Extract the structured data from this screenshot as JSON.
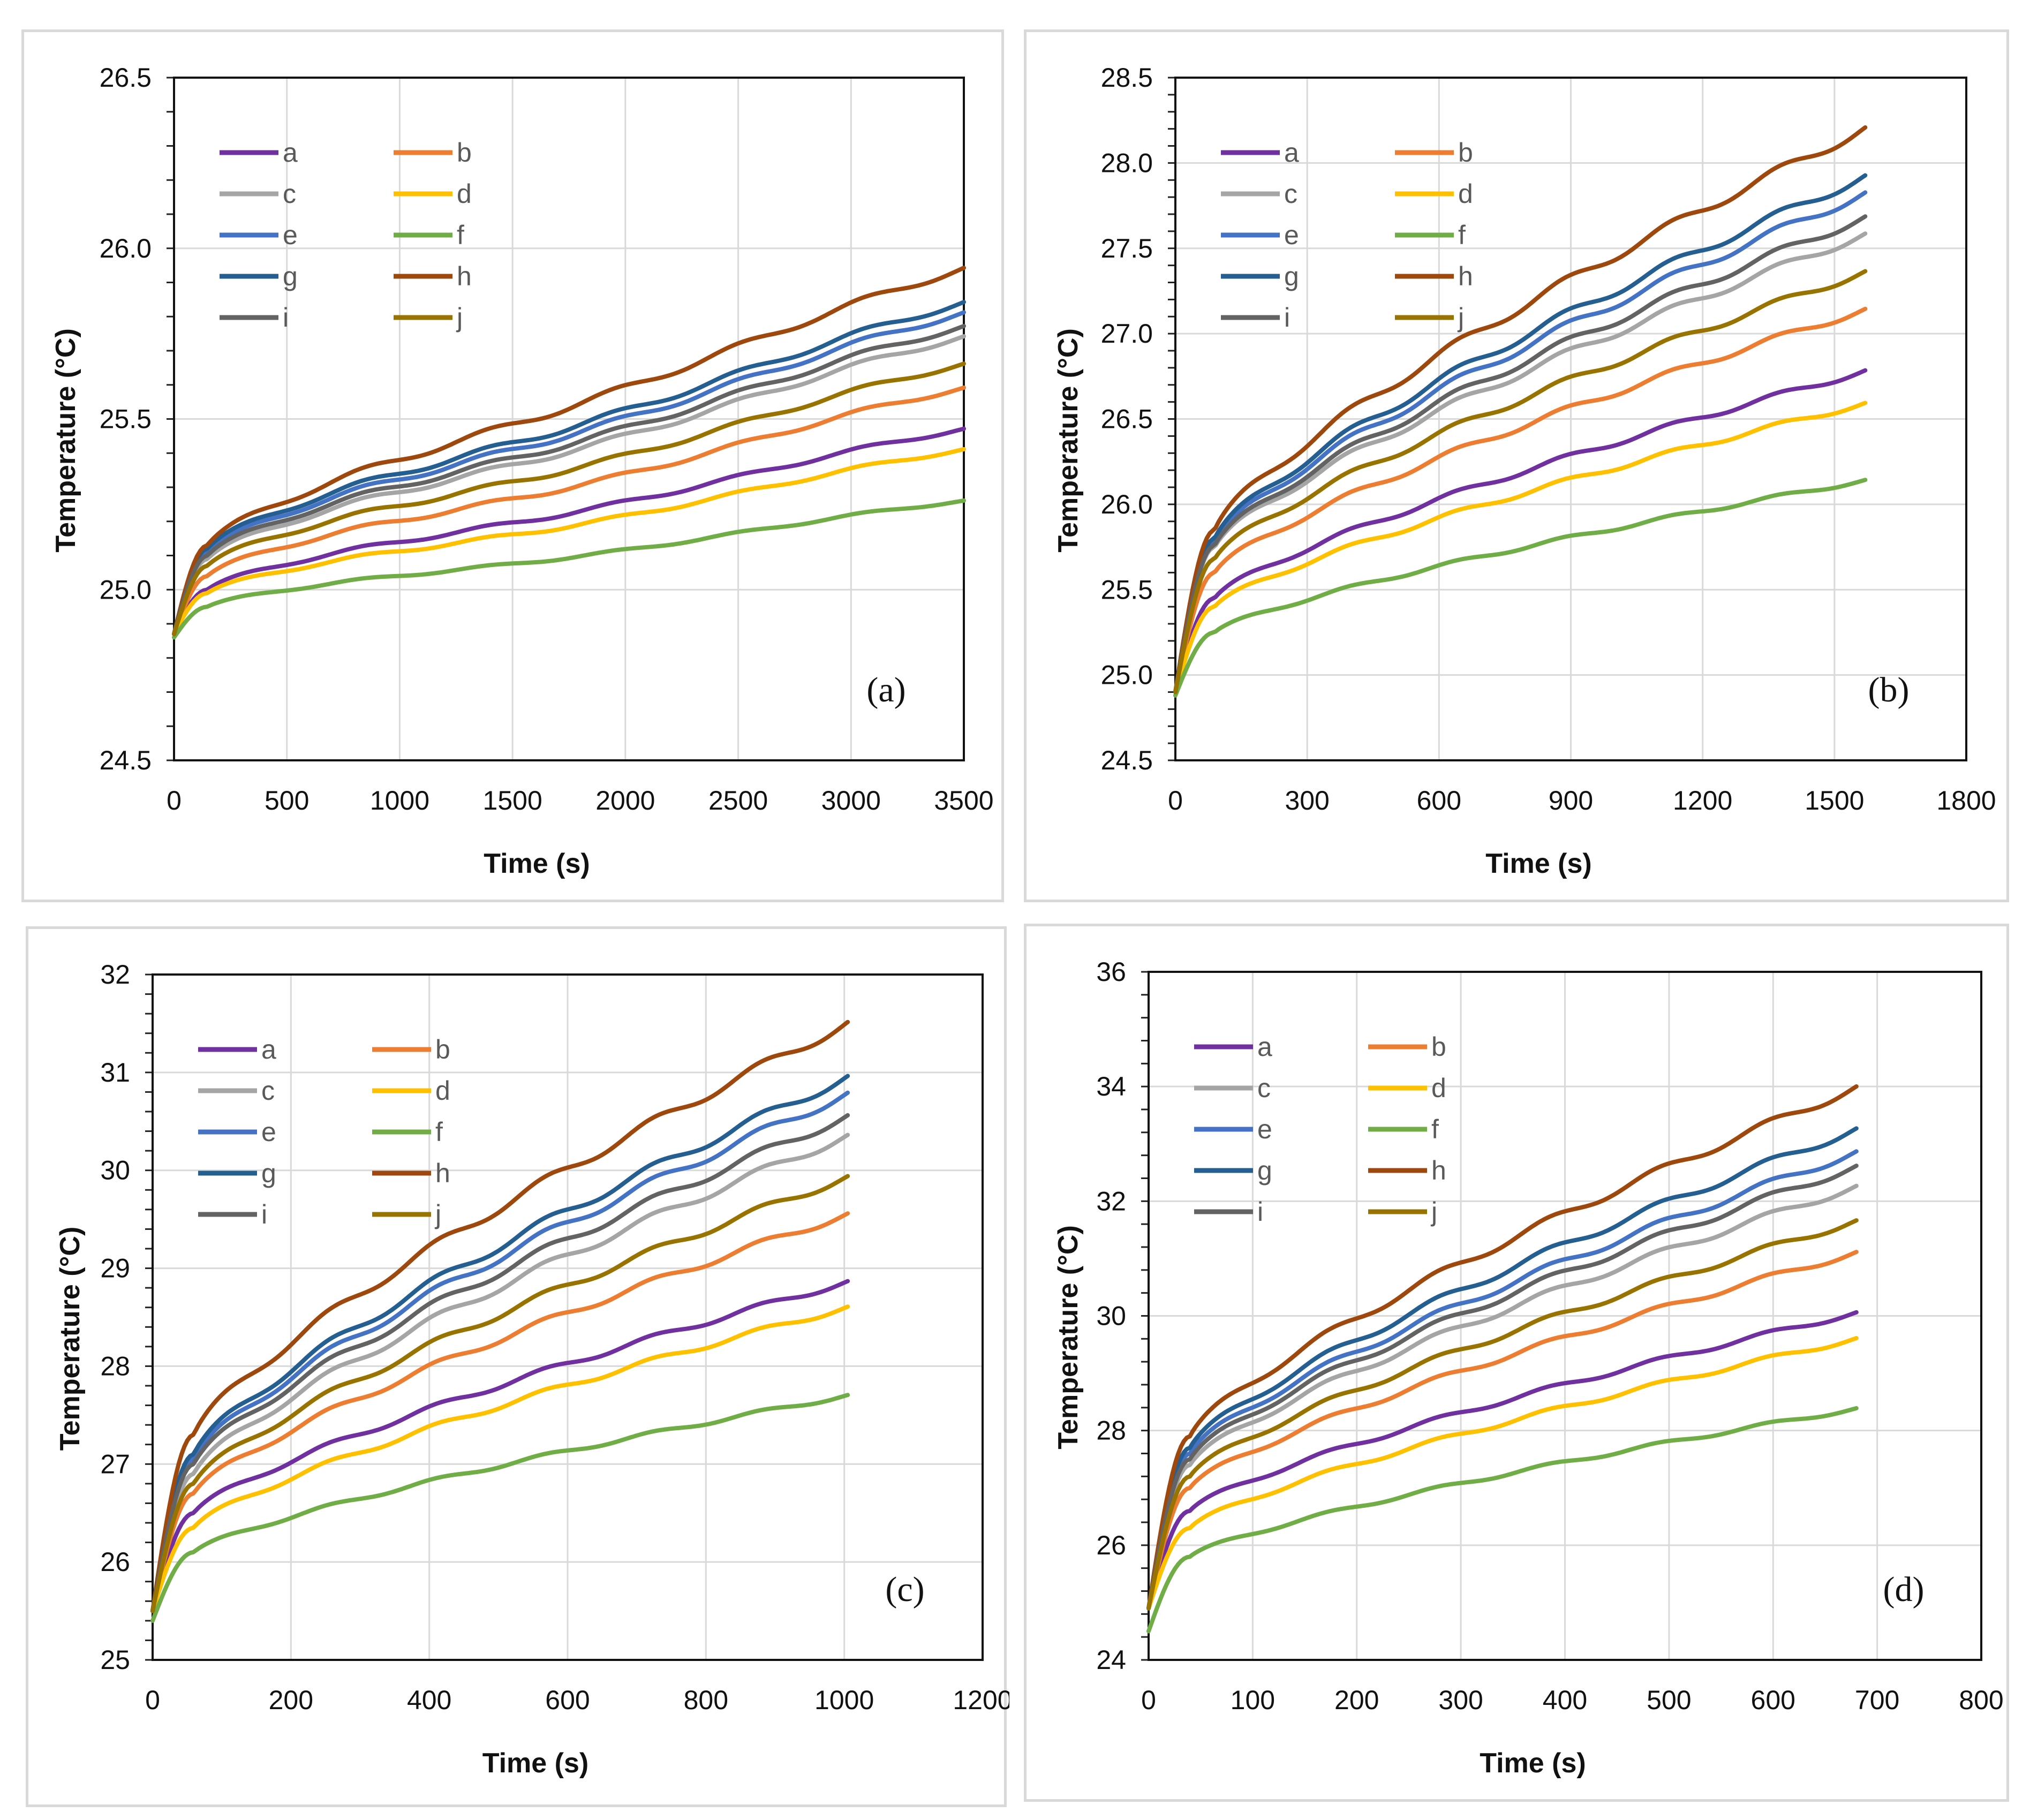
{
  "colors": {
    "a": "#7030A0",
    "b": "#ED7D31",
    "c": "#A5A5A5",
    "d": "#FFC000",
    "e": "#4472C4",
    "f": "#70AD47",
    "g": "#255E91",
    "h": "#9E480E",
    "i": "#636363",
    "j": "#997300"
  },
  "chart_data": [
    {
      "type": "line",
      "panel_label": "(a)",
      "xlabel": "Time (s)",
      "ylabel": "Temperature (°C)",
      "xlim": [
        0,
        3500
      ],
      "ylim": [
        24.5,
        26.5
      ],
      "xticks": [
        0,
        500,
        1000,
        1500,
        2000,
        2500,
        3000,
        3500
      ],
      "yticks": [
        24.5,
        25.0,
        25.5,
        26.0,
        26.5
      ],
      "ytick_decimals": 1,
      "x_end": 3500,
      "series": [
        {
          "name": "a",
          "start": 24.87,
          "knee": [
            150,
            25.0
          ],
          "end": 25.47,
          "flatten": 0.04
        },
        {
          "name": "b",
          "start": 24.87,
          "knee": [
            150,
            25.04
          ],
          "end": 25.59,
          "flatten": 0.05
        },
        {
          "name": "c",
          "start": 24.87,
          "knee": [
            150,
            25.09
          ],
          "end": 25.74,
          "flatten": 0.05
        },
        {
          "name": "d",
          "start": 24.87,
          "knee": [
            150,
            24.99
          ],
          "end": 25.41,
          "flatten": 0.04
        },
        {
          "name": "e",
          "start": 24.87,
          "knee": [
            150,
            25.11
          ],
          "end": 25.81,
          "flatten": 0.05
        },
        {
          "name": "f",
          "start": 24.86,
          "knee": [
            150,
            24.95
          ],
          "end": 25.26,
          "flatten": 0.03
        },
        {
          "name": "g",
          "start": 24.87,
          "knee": [
            150,
            25.12
          ],
          "end": 25.84,
          "flatten": 0.05
        },
        {
          "name": "h",
          "start": 24.87,
          "knee": [
            150,
            25.13
          ],
          "end": 25.94,
          "flatten": 0.05
        },
        {
          "name": "i",
          "start": 24.87,
          "knee": [
            150,
            25.1
          ],
          "end": 25.77,
          "flatten": 0.05
        },
        {
          "name": "j",
          "start": 24.87,
          "knee": [
            150,
            25.07
          ],
          "end": 25.66,
          "flatten": 0.05
        }
      ]
    },
    {
      "type": "line",
      "panel_label": "(b)",
      "xlabel": "Time (s)",
      "ylabel": "Temperature (°C)",
      "xlim": [
        0,
        1800
      ],
      "ylim": [
        24.5,
        28.5
      ],
      "xticks": [
        0,
        300,
        600,
        900,
        1200,
        1500,
        1800
      ],
      "yticks": [
        24.5,
        25.0,
        25.5,
        26.0,
        26.5,
        27.0,
        27.5,
        28.0,
        28.5
      ],
      "ytick_decimals": 1,
      "x_end": 1570,
      "series": [
        {
          "name": "a",
          "start": 24.9,
          "knee": [
            90,
            25.45
          ],
          "end": 26.78,
          "flatten": 0.0
        },
        {
          "name": "b",
          "start": 24.9,
          "knee": [
            90,
            25.6
          ],
          "end": 27.14,
          "flatten": 0.0
        },
        {
          "name": "c",
          "start": 24.9,
          "knee": [
            90,
            25.75
          ],
          "end": 27.58,
          "flatten": 0.0
        },
        {
          "name": "d",
          "start": 24.9,
          "knee": [
            90,
            25.4
          ],
          "end": 26.59,
          "flatten": 0.0
        },
        {
          "name": "e",
          "start": 24.9,
          "knee": [
            90,
            25.78
          ],
          "end": 27.82,
          "flatten": 0.0
        },
        {
          "name": "f",
          "start": 24.88,
          "knee": [
            90,
            25.25
          ],
          "end": 26.14,
          "flatten": 0.0
        },
        {
          "name": "g",
          "start": 24.9,
          "knee": [
            90,
            25.8
          ],
          "end": 27.92,
          "flatten": 0.0
        },
        {
          "name": "h",
          "start": 24.9,
          "knee": [
            90,
            25.85
          ],
          "end": 28.2,
          "flatten": 0.0
        },
        {
          "name": "i",
          "start": 24.9,
          "knee": [
            90,
            25.76
          ],
          "end": 27.68,
          "flatten": 0.0
        },
        {
          "name": "j",
          "start": 24.9,
          "knee": [
            90,
            25.68
          ],
          "end": 27.36,
          "flatten": 0.0
        }
      ]
    },
    {
      "type": "line",
      "panel_label": "(c)",
      "xlabel": "Time (s)",
      "ylabel": "Temperature (°C)",
      "xlim": [
        0,
        1200
      ],
      "ylim": [
        25,
        32
      ],
      "xticks": [
        0,
        200,
        400,
        600,
        800,
        1000,
        1200
      ],
      "yticks": [
        25,
        26,
        27,
        28,
        29,
        30,
        31,
        32
      ],
      "ytick_decimals": 0,
      "x_end": 1005,
      "series": [
        {
          "name": "a",
          "start": 25.5,
          "knee": [
            60,
            26.5
          ],
          "end": 28.86,
          "flatten": 0.0
        },
        {
          "name": "b",
          "start": 25.5,
          "knee": [
            60,
            26.7
          ],
          "end": 29.55,
          "flatten": 0.0
        },
        {
          "name": "c",
          "start": 25.5,
          "knee": [
            60,
            26.9
          ],
          "end": 30.35,
          "flatten": 0.0
        },
        {
          "name": "d",
          "start": 25.5,
          "knee": [
            60,
            26.35
          ],
          "end": 28.6,
          "flatten": 0.0
        },
        {
          "name": "e",
          "start": 25.5,
          "knee": [
            60,
            27.05
          ],
          "end": 30.78,
          "flatten": 0.0
        },
        {
          "name": "f",
          "start": 25.4,
          "knee": [
            60,
            26.1
          ],
          "end": 27.7,
          "flatten": 0.0
        },
        {
          "name": "g",
          "start": 25.5,
          "knee": [
            60,
            27.1
          ],
          "end": 30.95,
          "flatten": 0.0
        },
        {
          "name": "h",
          "start": 25.5,
          "knee": [
            60,
            27.3
          ],
          "end": 31.5,
          "flatten": 0.0
        },
        {
          "name": "i",
          "start": 25.5,
          "knee": [
            60,
            27.0
          ],
          "end": 30.55,
          "flatten": 0.0
        },
        {
          "name": "j",
          "start": 25.5,
          "knee": [
            60,
            26.8
          ],
          "end": 29.93,
          "flatten": 0.0
        }
      ]
    },
    {
      "type": "line",
      "panel_label": "(d)",
      "xlabel": "Time (s)",
      "ylabel": "Temperature (°C)",
      "xlim": [
        0,
        800
      ],
      "ylim": [
        24,
        36
      ],
      "xticks": [
        0,
        100,
        200,
        300,
        400,
        500,
        600,
        700,
        800
      ],
      "yticks": [
        24,
        26,
        28,
        30,
        32,
        34,
        36
      ],
      "ytick_decimals": 0,
      "x_end": 680,
      "series": [
        {
          "name": "a",
          "start": 24.9,
          "knee": [
            40,
            26.6
          ],
          "end": 30.05,
          "flatten": 0.0
        },
        {
          "name": "b",
          "start": 24.9,
          "knee": [
            40,
            27.0
          ],
          "end": 31.1,
          "flatten": 0.0
        },
        {
          "name": "c",
          "start": 24.9,
          "knee": [
            40,
            27.4
          ],
          "end": 32.25,
          "flatten": 0.0
        },
        {
          "name": "d",
          "start": 24.9,
          "knee": [
            40,
            26.3
          ],
          "end": 29.6,
          "flatten": 0.0
        },
        {
          "name": "e",
          "start": 24.9,
          "knee": [
            40,
            27.6
          ],
          "end": 32.85,
          "flatten": 0.0
        },
        {
          "name": "f",
          "start": 24.5,
          "knee": [
            40,
            25.8
          ],
          "end": 28.38,
          "flatten": 0.0
        },
        {
          "name": "g",
          "start": 24.9,
          "knee": [
            40,
            27.7
          ],
          "end": 33.25,
          "flatten": 0.0
        },
        {
          "name": "h",
          "start": 24.9,
          "knee": [
            40,
            27.9
          ],
          "end": 33.98,
          "flatten": 0.0
        },
        {
          "name": "i",
          "start": 24.9,
          "knee": [
            40,
            27.5
          ],
          "end": 32.6,
          "flatten": 0.0
        },
        {
          "name": "j",
          "start": 24.9,
          "knee": [
            40,
            27.2
          ],
          "end": 31.65,
          "flatten": 0.0
        }
      ]
    }
  ]
}
